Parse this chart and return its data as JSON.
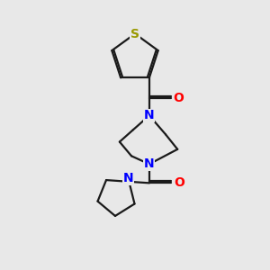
{
  "bg_color": "#e8e8e8",
  "bond_color": "#1a1a1a",
  "N_color": "#0000ff",
  "O_color": "#ff0000",
  "S_color": "#999900",
  "bond_width": 1.6,
  "figsize": [
    3.0,
    3.0
  ],
  "dpi": 100,
  "xlim": [
    0,
    10
  ],
  "ylim": [
    0,
    10
  ]
}
